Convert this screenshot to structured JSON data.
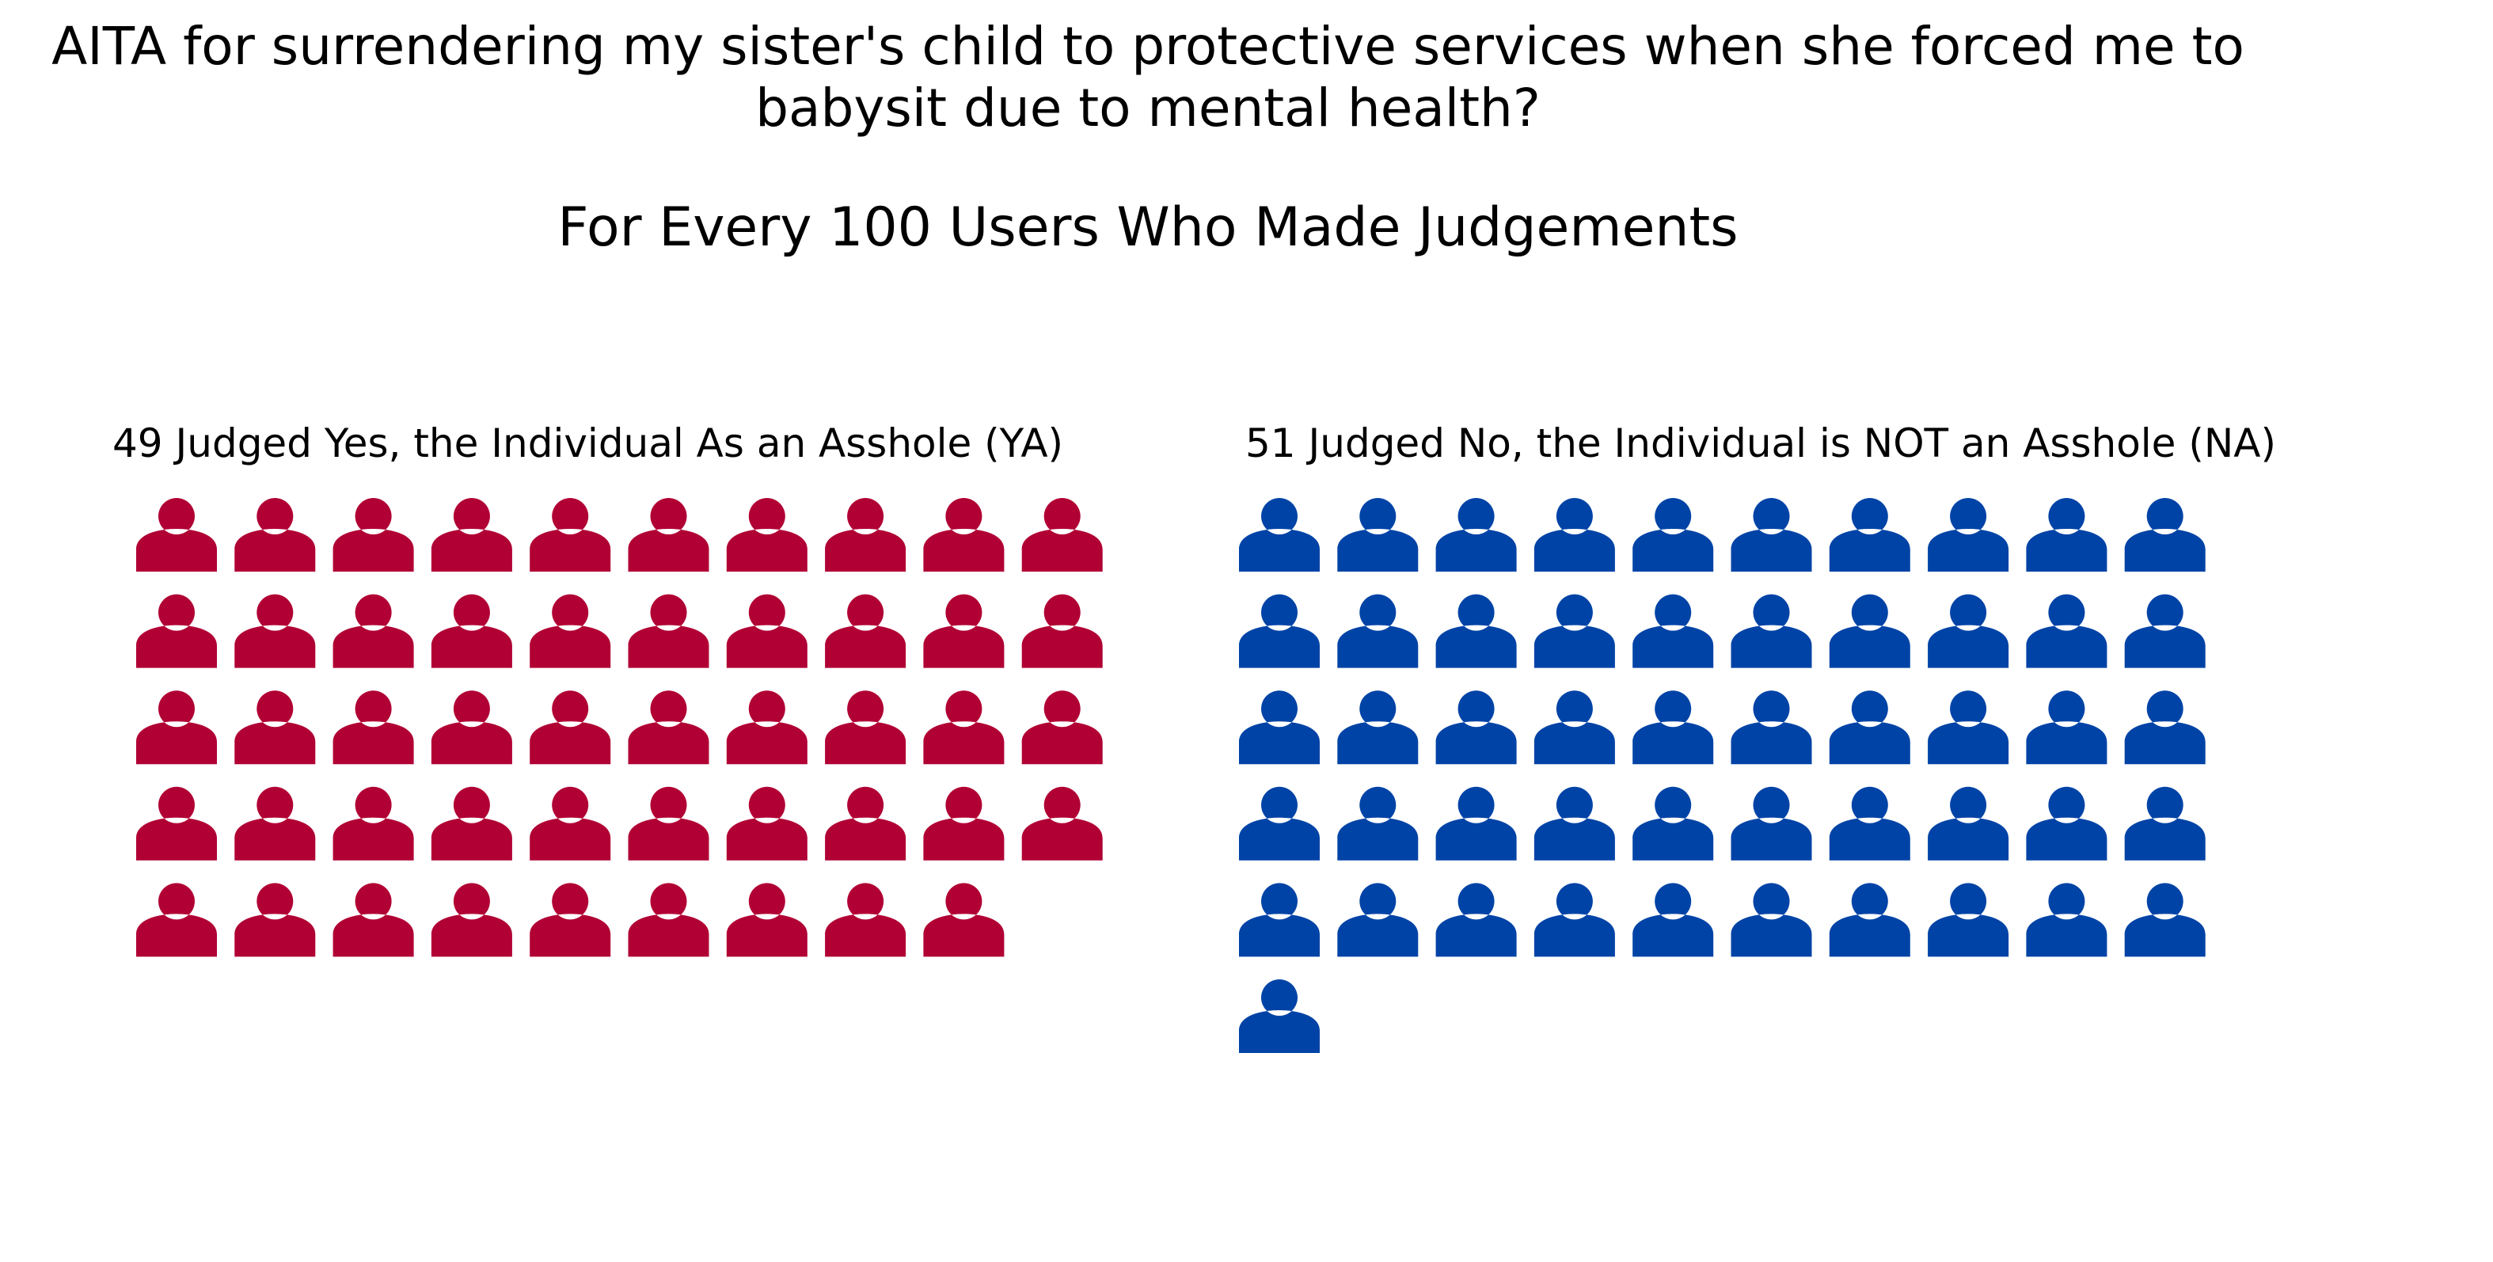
{
  "title_lines": [
    "AITA for surrendering my sister's child to protective services when she forced me to",
    "babysit due to mental health?"
  ],
  "subtitle": "For Every 100 Users Who Made Judgements",
  "chart_data": {
    "type": "pictogram",
    "unit": "users",
    "per_row": 10,
    "groups": [
      {
        "label": "49 Judged Yes, the Individual As an Asshole (YA)",
        "value": 49,
        "color": "#b10034",
        "icon": "person-icon"
      },
      {
        "label": "51 Judged No, the Individual is NOT an Asshole (NA)",
        "value": 51,
        "color": "#0043a6",
        "icon": "person-icon"
      }
    ]
  }
}
